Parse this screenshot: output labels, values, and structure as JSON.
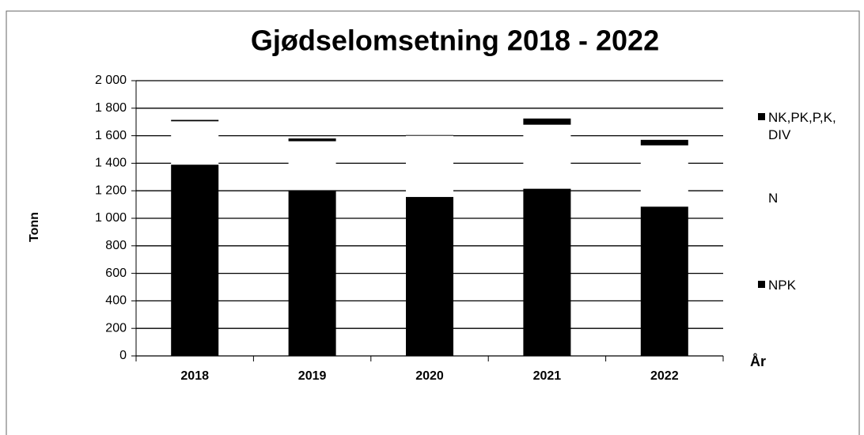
{
  "chart_data": {
    "type": "stacked_bar",
    "title": "Gjødselomsetning 2018 - 2022",
    "ylabel": "Tonn",
    "xlabel": "År",
    "categories": [
      "2018",
      "2019",
      "2020",
      "2021",
      "2022"
    ],
    "series": [
      {
        "name": "NPK",
        "color": "#000000",
        "values": [
          1390,
          1205,
          1155,
          1215,
          1085
        ]
      },
      {
        "name": "N",
        "color": "#ffffff",
        "values": [
          315,
          355,
          445,
          465,
          445
        ]
      },
      {
        "name": "NK,PK,P,K, DIV",
        "color": "#000000",
        "values": [
          10,
          20,
          5,
          45,
          40
        ]
      }
    ],
    "ylim": [
      0,
      2000
    ],
    "yticks": [
      0,
      200,
      400,
      600,
      800,
      {
        "value": 1000,
        "label": "1 000"
      },
      {
        "value": 1200,
        "label": "1 200"
      },
      {
        "value": 1400,
        "label": "1 400"
      },
      {
        "value": 1600,
        "label": "1 600"
      },
      {
        "value": 1800,
        "label": "1 800"
      },
      {
        "value": 2000,
        "label": "2 000"
      }
    ],
    "grid": true
  }
}
